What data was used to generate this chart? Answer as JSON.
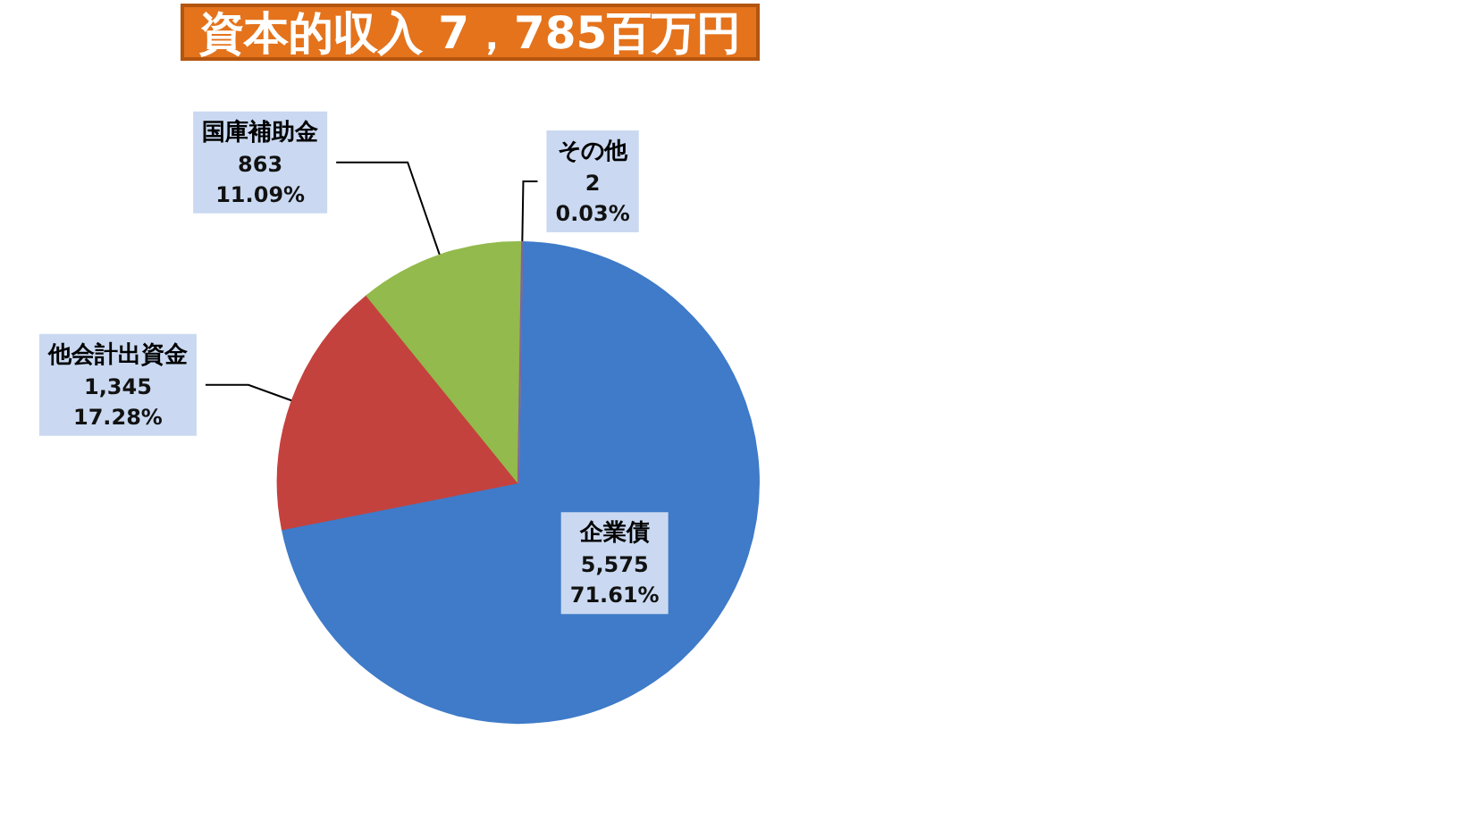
{
  "chart_data": {
    "type": "pie",
    "title": "資本的収入 7，785百万円",
    "categories": [
      "企業債",
      "他会計出資金",
      "国庫補助金",
      "その他"
    ],
    "values": [
      5575,
      1345,
      863,
      2
    ],
    "colors": [
      "#3f7bc8",
      "#c4423e",
      "#93ba4c",
      "#8064a2"
    ],
    "value_labels": [
      "5,575\n71.61%",
      "1,345\n17.28%",
      "863\n11.09%",
      "2\n0.03%"
    ]
  }
}
